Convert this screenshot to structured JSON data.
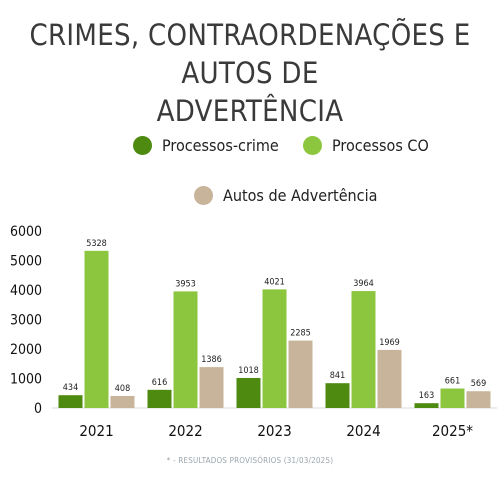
{
  "chart_data": {
    "type": "bar",
    "title_lines": [
      "CRIMES, CONTRAORDENAÇÕES E AUTOS DE",
      "ADVERTÊNCIA"
    ],
    "categories": [
      "2021",
      "2022",
      "2023",
      "2024",
      "2025*"
    ],
    "series": [
      {
        "name": "Processos-crime",
        "color": "#4f8a10",
        "values": [
          434,
          616,
          1018,
          841,
          163
        ]
      },
      {
        "name": "Processos CO",
        "color": "#8cc63f",
        "values": [
          5328,
          3953,
          4021,
          3964,
          661
        ]
      },
      {
        "name": "Autos de Advertência",
        "color": "#c8b49a",
        "values": [
          408,
          1386,
          2285,
          1969,
          569
        ]
      }
    ],
    "y_ticks": [
      "0",
      "1000",
      "2000",
      "3000",
      "4000",
      "5000",
      "6000"
    ],
    "ylim": [
      0,
      6000
    ],
    "grid": false,
    "legend_position": "top",
    "footnote": "* - RESULTADOS PROVISÓRIOS (31/03/2025)"
  }
}
